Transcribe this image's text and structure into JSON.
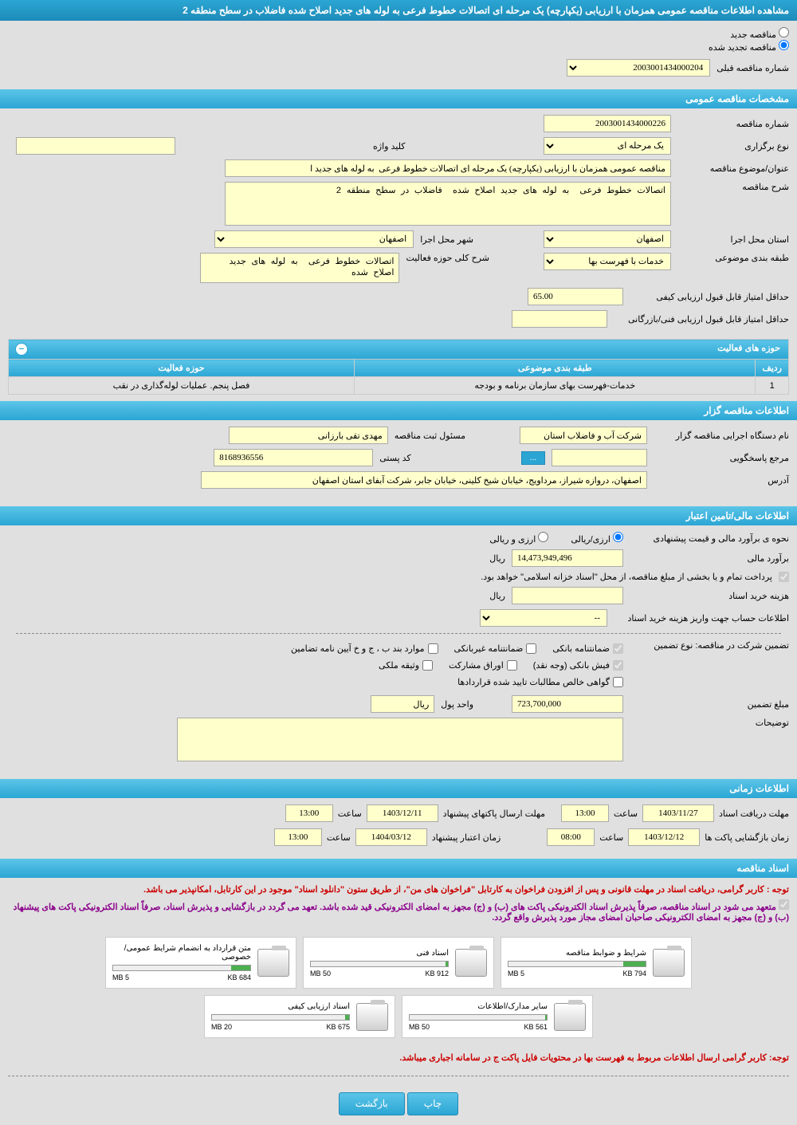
{
  "header": {
    "title": "مشاهده اطلاعات مناقصه عمومی همزمان با ارزیابی (یکپارچه) یک مرحله ای اتصالات خطوط فرعی به لوله های جدید اصلاح شده فاضلاب در سطح منطقه 2"
  },
  "radio": {
    "new_tender": "مناقصه جدید",
    "renewed_tender": "مناقصه تجدید شده",
    "prev_number_label": "شماره مناقصه قبلی",
    "prev_number_value": "2003001434000204"
  },
  "sections": {
    "general_spec": "مشخصات مناقصه عمومی",
    "activity_scope": "حوزه های فعالیت",
    "tender_holder": "اطلاعات مناقصه گزار",
    "financial": "اطلاعات مالی/تامین اعتبار",
    "time_info": "اطلاعات زمانی",
    "documents": "اسناد مناقصه"
  },
  "general": {
    "tender_number_label": "شماره مناقصه",
    "tender_number": "2003001434000226",
    "holding_type_label": "نوع برگزاری",
    "holding_type": "یک مرحله ای",
    "keyword_label": "کلید واژه",
    "keyword": "",
    "subject_label": "عنوان/موضوع مناقصه",
    "subject": "مناقصه عمومی همزمان با ارزیابی (یکپارچه) یک مرحله ای اتصالات خطوط فرعی  به لوله های جدید ا",
    "description_label": "شرح مناقصه",
    "description": "اتصالات خطوط فرعی  به لوله های جدید اصلاح شده  فاضلاب در سطح منطقه 2",
    "province_label": "استان محل اجرا",
    "province": "اصفهان",
    "city_label": "شهر محل اجرا",
    "city": "اصفهان",
    "category_label": "طبقه بندی موضوعی",
    "category": "خدمات با فهرست بها",
    "activity_desc_label": "شرح کلی حوزه فعالیت",
    "activity_desc": "اتصالات خطوط فرعی  به لوله های جدید اصلاح شده",
    "min_quality_score_label": "حداقل امتیاز قابل قبول ارزیابی کیفی",
    "min_quality_score": "65.00",
    "min_tech_score_label": "حداقل امتیاز قابل قبول ارزیابی فنی/بازرگانی",
    "min_tech_score": ""
  },
  "activity_table": {
    "col_row": "ردیف",
    "col_category": "طبقه بندی موضوعی",
    "col_scope": "حوزه فعالیت",
    "row1_num": "1",
    "row1_category": "خدمات-فهرست بهای سازمان برنامه و بودجه",
    "row1_scope": "فصل پنجم. عملیات لوله‌گذاری در نقب"
  },
  "holder": {
    "org_label": "نام دستگاه اجرایی مناقصه گزار",
    "org": "شركت آب و فاضلاب استان",
    "responsible_label": "مسئول ثبت مناقصه",
    "responsible": "مهدی تقی بارزانی",
    "contact_label": "مرجع پاسخگویی",
    "contact": "",
    "browse": "...",
    "postal_label": "کد پستی",
    "postal": "8168936556",
    "address_label": "آدرس",
    "address": "اصفهان، دروازه شیراز، مرداویج، خیابان شیخ کلینی، خیابان جابر، شرکت آبفای استان اصفهان"
  },
  "financial": {
    "estimate_method_label": "نحوه ی برآورد مالی و قیمت پیشنهادی",
    "rial_option": "ارزی/ریالی",
    "currency_option": "ارزی و ریالی",
    "estimate_label": "برآورد مالی",
    "estimate": "14,473,949,496",
    "rial_unit": "ریال",
    "payment_note": "پرداخت تمام و یا بخشی از مبلغ مناقصه، از محل \"اسناد خزانه اسلامی\" خواهد بود.",
    "doc_cost_label": "هزینه خرید اسناد",
    "doc_cost": "",
    "account_info_label": "اطلاعات حساب جهت واریز هزینه خرید اسناد",
    "account_info": "--",
    "guarantee_type_label": "تضمین شرکت در مناقصه:   نوع تضمین",
    "bank_guarantee": "ضمانتنامه بانکی",
    "nonbank_guarantee": "ضمانتنامه غیربانکی",
    "clause_items": "موارد بند ب ، ج و خ آیین نامه تضامین",
    "bank_receipt": "فیش بانکی (وجه نقد)",
    "bonds": "اوراق مشارکت",
    "property": "وثیقه ملکی",
    "net_claims": "گواهی خالص مطالبات تایید شده قراردادها",
    "guarantee_amount_label": "مبلغ تضمین",
    "guarantee_amount": "723,700,000",
    "money_unit_label": "واحد پول",
    "money_unit": "ریال",
    "remarks_label": "توضیحات",
    "remarks": ""
  },
  "time": {
    "doc_deadline_label": "مهلت دریافت اسناد",
    "doc_deadline_date": "1403/11/27",
    "doc_deadline_time_label": "ساعت",
    "doc_deadline_time": "13:00",
    "packet_deadline_label": "مهلت ارسال پاکتهای پیشنهاد",
    "packet_deadline_date": "1403/12/11",
    "packet_deadline_time": "13:00",
    "opening_label": "زمان بازگشایی پاکت ها",
    "opening_date": "1403/12/12",
    "opening_time": "08:00",
    "validity_label": "زمان اعتبار پیشنهاد",
    "validity_date": "1404/03/12",
    "validity_time": "13:00"
  },
  "notices": {
    "note1": "توجه : کاربر گرامی، دريافت اسناد در مهلت قانونی و پس از افزودن فراخوان به کارتابل \"فراخوان های من\"، از طريق ستون \"دانلود اسناد\" موجود در اين کارتابل، امکانپذير می باشد.",
    "note2": "متعهد می شود در اسناد مناقصه، صرفاً پذیرش اسناد الکترونیکی پاکت های (ب) و (ج) مجهز به امضای الکترونیکی قید شده باشد. تعهد می گردد در بازگشایی و پذیرش اسناد، صرفاً اسناد الکترونیکی پاکت های پیشنهاد (ب) و (ج) مجهز به امضای الکترونیکی صاحبان امضای مجاز مورد پذیرش واقع گردد.",
    "note3": "توجه: کاربر گرامی ارسال اطلاعات مربوط به فهرست بها در محتویات فایل پاکت ج در سامانه اجباری میباشد."
  },
  "files": [
    {
      "title": "شرایط و ضوابط مناقصه",
      "size": "794 KB",
      "max": "5 MB",
      "fill": 16
    },
    {
      "title": "اسناد فنی",
      "size": "912 KB",
      "max": "50 MB",
      "fill": 2
    },
    {
      "title": "متن قرارداد به انضمام شرایط عمومی/خصوصی",
      "size": "684 KB",
      "max": "5 MB",
      "fill": 14
    },
    {
      "title": "سایر مدارک/اطلاعات",
      "size": "561 KB",
      "max": "50 MB",
      "fill": 1
    },
    {
      "title": "اسناد ارزیابی کیفی",
      "size": "675 KB",
      "max": "20 MB",
      "fill": 3
    }
  ],
  "buttons": {
    "print": "چاپ",
    "back": "بازگشت"
  }
}
